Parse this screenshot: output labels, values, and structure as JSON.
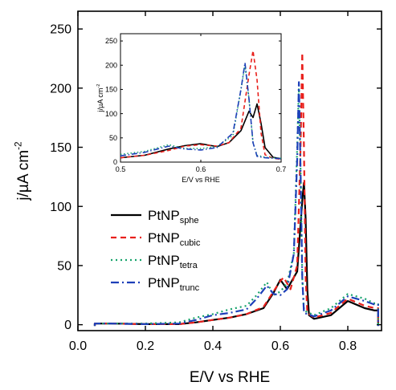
{
  "chart_data": [
    {
      "type": "line",
      "title": "",
      "xlabel": "E/V vs RHE",
      "ylabel": "j/µA cm⁻²",
      "xlim": [
        0.0,
        0.9
      ],
      "ylim": [
        -5,
        265
      ],
      "xticks": [
        0.0,
        0.2,
        0.4,
        0.6,
        0.8
      ],
      "yticks": [
        0,
        50,
        100,
        150,
        200,
        250
      ],
      "grid": false,
      "legend_position": "center-left",
      "series": [
        {
          "name": "PtNP",
          "name_sub": "sphe",
          "color": "#000000",
          "dash": "solid",
          "points": [
            [
              0.05,
              -1
            ],
            [
              0.05,
              1
            ],
            [
              0.1,
              1
            ],
            [
              0.2,
              0.5
            ],
            [
              0.3,
              0.5
            ],
            [
              0.35,
              2
            ],
            [
              0.4,
              4
            ],
            [
              0.45,
              6
            ],
            [
              0.5,
              9
            ],
            [
              0.55,
              14
            ],
            [
              0.58,
              27
            ],
            [
              0.6,
              38
            ],
            [
              0.62,
              30
            ],
            [
              0.65,
              45
            ],
            [
              0.66,
              85
            ],
            [
              0.665,
              105
            ],
            [
              0.67,
              120
            ],
            [
              0.675,
              90
            ],
            [
              0.68,
              30
            ],
            [
              0.685,
              8
            ],
            [
              0.7,
              5
            ],
            [
              0.75,
              8
            ],
            [
              0.8,
              20
            ],
            [
              0.85,
              14
            ],
            [
              0.88,
              12
            ],
            [
              0.89,
              12
            ],
            [
              0.89,
              -1
            ]
          ]
        },
        {
          "name": "PtNP",
          "name_sub": "cubic",
          "color": "#e8201c",
          "dash": "7 5",
          "points": [
            [
              0.05,
              -1
            ],
            [
              0.05,
              1
            ],
            [
              0.1,
              1
            ],
            [
              0.2,
              0.5
            ],
            [
              0.3,
              0.5
            ],
            [
              0.35,
              2
            ],
            [
              0.4,
              4
            ],
            [
              0.45,
              6
            ],
            [
              0.5,
              9
            ],
            [
              0.55,
              15
            ],
            [
              0.6,
              37
            ],
            [
              0.61,
              40
            ],
            [
              0.63,
              30
            ],
            [
              0.65,
              50
            ],
            [
              0.66,
              150
            ],
            [
              0.665,
              230
            ],
            [
              0.67,
              150
            ],
            [
              0.675,
              40
            ],
            [
              0.68,
              10
            ],
            [
              0.7,
              6
            ],
            [
              0.75,
              10
            ],
            [
              0.8,
              22
            ],
            [
              0.85,
              16
            ],
            [
              0.88,
              14
            ],
            [
              0.89,
              14
            ],
            [
              0.89,
              -1
            ]
          ]
        },
        {
          "name": "PtNP",
          "name_sub": "tetra",
          "color": "#16a36b",
          "dash": "2 4",
          "points": [
            [
              0.05,
              -1
            ],
            [
              0.05,
              1
            ],
            [
              0.1,
              1
            ],
            [
              0.2,
              1
            ],
            [
              0.3,
              2
            ],
            [
              0.35,
              6
            ],
            [
              0.4,
              9
            ],
            [
              0.45,
              13
            ],
            [
              0.5,
              16
            ],
            [
              0.53,
              25
            ],
            [
              0.56,
              36
            ],
            [
              0.58,
              25
            ],
            [
              0.6,
              28
            ],
            [
              0.62,
              35
            ],
            [
              0.64,
              60
            ],
            [
              0.65,
              150
            ],
            [
              0.655,
              200
            ],
            [
              0.66,
              130
            ],
            [
              0.665,
              40
            ],
            [
              0.67,
              12
            ],
            [
              0.7,
              8
            ],
            [
              0.75,
              14
            ],
            [
              0.8,
              26
            ],
            [
              0.85,
              22
            ],
            [
              0.88,
              18
            ],
            [
              0.89,
              18
            ],
            [
              0.89,
              -1
            ]
          ]
        },
        {
          "name": "PtNP",
          "name_sub": "trunc",
          "color": "#1d3fb8",
          "dash": "10 4 2 4",
          "points": [
            [
              0.05,
              -1
            ],
            [
              0.05,
              1
            ],
            [
              0.1,
              1
            ],
            [
              0.2,
              0.5
            ],
            [
              0.3,
              1
            ],
            [
              0.35,
              4
            ],
            [
              0.4,
              8
            ],
            [
              0.45,
              10
            ],
            [
              0.5,
              13
            ],
            [
              0.53,
              22
            ],
            [
              0.56,
              33
            ],
            [
              0.58,
              26
            ],
            [
              0.6,
              25
            ],
            [
              0.62,
              30
            ],
            [
              0.64,
              60
            ],
            [
              0.65,
              140
            ],
            [
              0.655,
              205
            ],
            [
              0.66,
              130
            ],
            [
              0.665,
              40
            ],
            [
              0.67,
              10
            ],
            [
              0.7,
              7
            ],
            [
              0.75,
              12
            ],
            [
              0.8,
              24
            ],
            [
              0.85,
              20
            ],
            [
              0.88,
              17
            ],
            [
              0.89,
              17
            ],
            [
              0.89,
              -1
            ]
          ]
        }
      ],
      "legend": [
        {
          "label": "PtNP",
          "sub": "sphe"
        },
        {
          "label": "PtNP",
          "sub": "cubic"
        },
        {
          "label": "PtNP",
          "sub": "tetra"
        },
        {
          "label": "PtNP",
          "sub": "trunc"
        }
      ]
    },
    {
      "type": "line",
      "title": "",
      "xlabel": "E/V vs RHE",
      "ylabel": "j/µA cm⁻²",
      "xlim": [
        0.5,
        0.7
      ],
      "ylim": [
        0,
        265
      ],
      "xticks": [
        0.5,
        0.6,
        0.7
      ],
      "yticks": [
        0,
        50,
        100,
        150,
        200,
        250
      ],
      "grid": false,
      "series": [
        {
          "name": "PtNP",
          "name_sub": "sphe",
          "color": "#000000",
          "dash": "solid",
          "points": [
            [
              0.5,
              9
            ],
            [
              0.53,
              14
            ],
            [
              0.56,
              27
            ],
            [
              0.58,
              34
            ],
            [
              0.6,
              38
            ],
            [
              0.62,
              32
            ],
            [
              0.635,
              40
            ],
            [
              0.65,
              65
            ],
            [
              0.66,
              105
            ],
            [
              0.665,
              92
            ],
            [
              0.67,
              120
            ],
            [
              0.675,
              80
            ],
            [
              0.68,
              30
            ],
            [
              0.69,
              10
            ],
            [
              0.7,
              7
            ]
          ]
        },
        {
          "name": "PtNP",
          "name_sub": "cubic",
          "color": "#e8201c",
          "dash": "7 5",
          "points": [
            [
              0.5,
              9
            ],
            [
              0.53,
              14
            ],
            [
              0.56,
              24
            ],
            [
              0.58,
              33
            ],
            [
              0.6,
              36
            ],
            [
              0.62,
              33
            ],
            [
              0.635,
              40
            ],
            [
              0.65,
              70
            ],
            [
              0.66,
              180
            ],
            [
              0.665,
              230
            ],
            [
              0.67,
              170
            ],
            [
              0.675,
              60
            ],
            [
              0.68,
              15
            ],
            [
              0.69,
              8
            ],
            [
              0.7,
              6
            ]
          ]
        },
        {
          "name": "PtNP",
          "name_sub": "tetra",
          "color": "#16a36b",
          "dash": "2 4",
          "points": [
            [
              0.5,
              16
            ],
            [
              0.53,
              22
            ],
            [
              0.56,
              36
            ],
            [
              0.58,
              28
            ],
            [
              0.6,
              28
            ],
            [
              0.62,
              32
            ],
            [
              0.64,
              55
            ],
            [
              0.65,
              150
            ],
            [
              0.655,
              200
            ],
            [
              0.66,
              130
            ],
            [
              0.665,
              40
            ],
            [
              0.67,
              14
            ],
            [
              0.68,
              10
            ],
            [
              0.69,
              9
            ],
            [
              0.7,
              8
            ]
          ]
        },
        {
          "name": "PtNP",
          "name_sub": "trunc",
          "color": "#1d3fb8",
          "dash": "10 4 2 4",
          "points": [
            [
              0.5,
              13
            ],
            [
              0.53,
              20
            ],
            [
              0.56,
              33
            ],
            [
              0.58,
              27
            ],
            [
              0.6,
              25
            ],
            [
              0.62,
              30
            ],
            [
              0.64,
              60
            ],
            [
              0.65,
              150
            ],
            [
              0.655,
              205
            ],
            [
              0.66,
              130
            ],
            [
              0.665,
              40
            ],
            [
              0.67,
              12
            ],
            [
              0.68,
              9
            ],
            [
              0.69,
              8
            ],
            [
              0.7,
              7
            ]
          ]
        }
      ]
    }
  ]
}
